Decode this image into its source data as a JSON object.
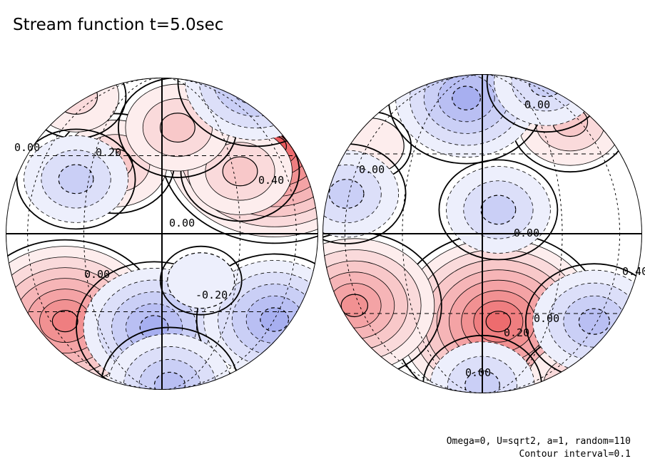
{
  "chart_data": {
    "type": "contour",
    "title": "Stream function t=5.0sec",
    "contour_interval": 0.1,
    "contour_labels": [
      "0.00",
      "0.20",
      "0.40",
      "0.00",
      "0.00",
      "-0.20",
      "0.00",
      "0.00",
      "0.00",
      "0.40",
      "0.20",
      "0.00",
      "0.00"
    ],
    "colors": {
      "positive": "#e8474a",
      "negative": "#4f5fe0",
      "zero": "#ffffff"
    },
    "grid": true,
    "hemispheres": [
      {
        "name": "left",
        "maxima": [
          {
            "lon": 0.72,
            "lat": 0.56,
            "value": 0.9
          },
          {
            "lon": -0.62,
            "lat": -0.56,
            "value": 0.7
          },
          {
            "lon": 0.5,
            "lat": 0.4,
            "value": 0.35
          },
          {
            "lon": -0.3,
            "lat": 0.45,
            "value": 0.25
          },
          {
            "lon": -0.55,
            "lat": 0.88,
            "value": 0.2
          },
          {
            "lon": 0.1,
            "lat": 0.68,
            "value": 0.25
          }
        ],
        "minima": [
          {
            "lon": -0.55,
            "lat": 0.35,
            "value": -0.25
          },
          {
            "lon": -0.05,
            "lat": -0.6,
            "value": -0.45
          },
          {
            "lon": 0.72,
            "lat": -0.55,
            "value": -0.45
          },
          {
            "lon": 0.05,
            "lat": -0.97,
            "value": -0.4
          },
          {
            "lon": 0.6,
            "lat": 0.98,
            "value": -0.5
          },
          {
            "lon": 0.25,
            "lat": -0.3,
            "value": -0.12
          }
        ]
      },
      {
        "name": "right",
        "maxima": [
          {
            "lon": 0.1,
            "lat": -0.55,
            "value": 0.75
          },
          {
            "lon": -0.8,
            "lat": -0.45,
            "value": 0.55
          },
          {
            "lon": 0.55,
            "lat": 0.7,
            "value": 0.35
          },
          {
            "lon": -0.7,
            "lat": 0.55,
            "value": 0.15
          },
          {
            "lon": 0.6,
            "lat": -0.95,
            "value": 0.3
          }
        ],
        "minima": [
          {
            "lon": -0.1,
            "lat": 0.85,
            "value": -0.45
          },
          {
            "lon": 0.1,
            "lat": 0.15,
            "value": -0.35
          },
          {
            "lon": -0.85,
            "lat": 0.25,
            "value": -0.25
          },
          {
            "lon": 0.7,
            "lat": -0.55,
            "value": -0.4
          },
          {
            "lon": 0.4,
            "lat": 0.95,
            "value": -0.3
          },
          {
            "lon": 0.0,
            "lat": -0.95,
            "value": -0.25
          }
        ]
      }
    ]
  },
  "notes": {
    "line1": "Omega=0, U=sqrt2, a=1, random=110",
    "line2": "Contour interval=0.1"
  }
}
